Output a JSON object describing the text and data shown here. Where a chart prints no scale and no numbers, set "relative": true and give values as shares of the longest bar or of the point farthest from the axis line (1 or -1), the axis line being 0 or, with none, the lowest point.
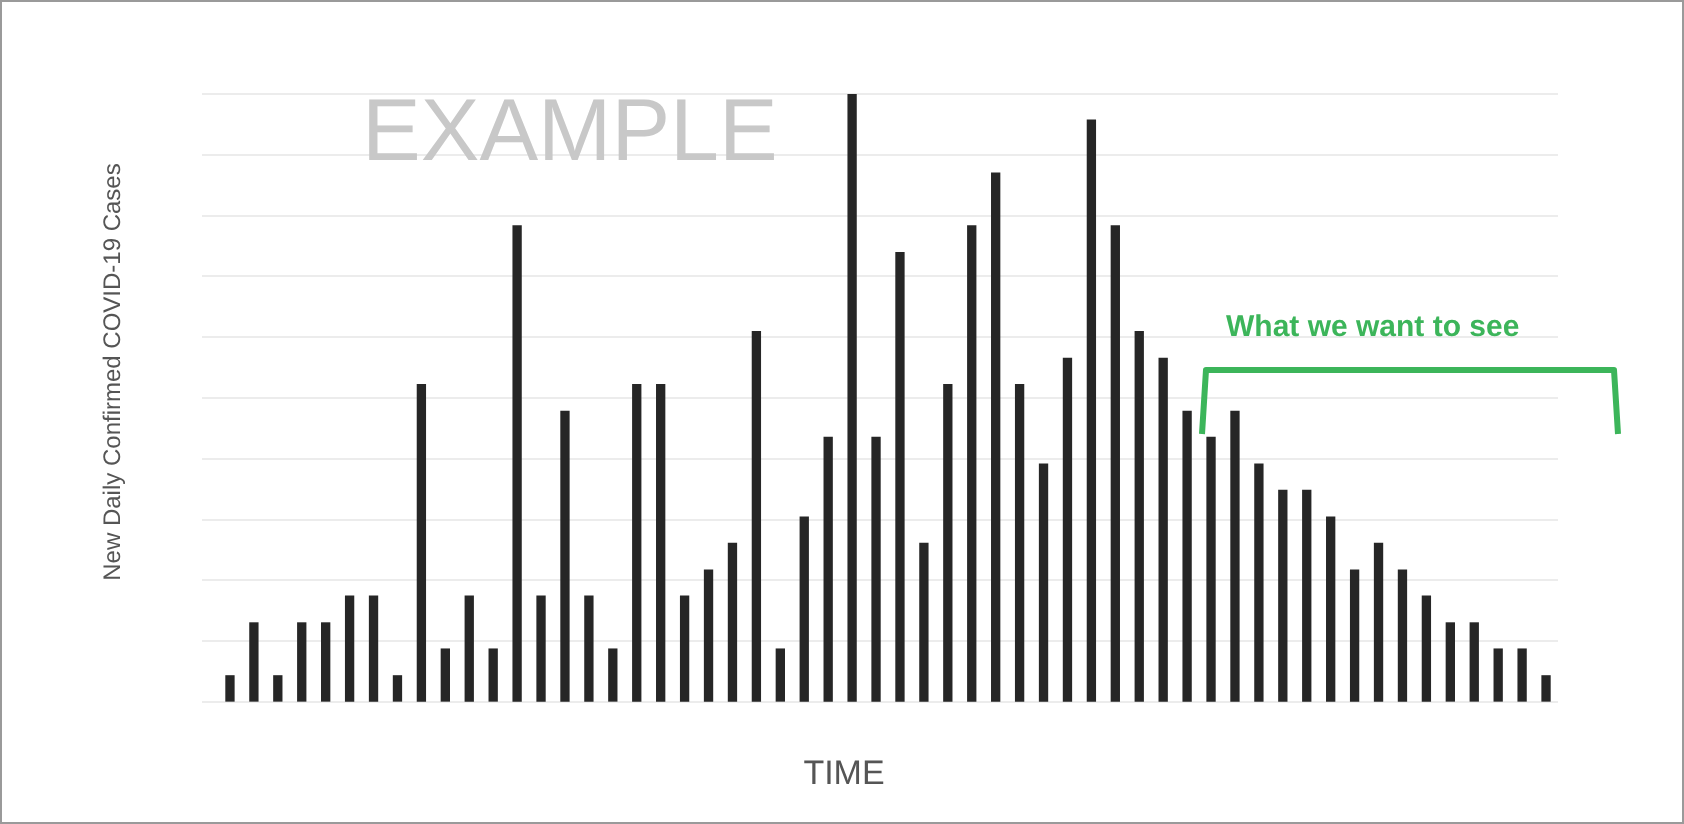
{
  "chart_data": {
    "type": "bar",
    "title": "EXAMPLE",
    "xlabel": "TIME",
    "ylabel": "New Daily Confirmed COVID-19 Cases",
    "relative": true,
    "grid": "y",
    "color": "#262626",
    "categories": [
      null,
      null,
      null,
      null,
      null,
      null,
      null,
      null,
      null,
      null,
      null,
      null,
      null,
      null,
      null,
      null,
      null,
      null,
      null,
      null,
      null,
      null,
      null,
      null,
      null,
      null,
      null,
      null,
      null,
      null,
      null,
      null,
      null,
      null,
      null,
      null,
      null,
      null,
      null,
      null,
      null,
      null,
      null,
      null,
      null,
      null,
      null,
      null,
      null,
      null,
      null,
      null,
      null,
      null,
      null,
      null
    ],
    "values": [
      0.043,
      0.13,
      0.043,
      0.13,
      0.13,
      0.174,
      0.174,
      0.043,
      0.522,
      0.087,
      0.174,
      0.087,
      0.783,
      0.174,
      0.478,
      0.174,
      0.087,
      0.522,
      0.522,
      0.174,
      0.217,
      0.261,
      0.609,
      0.087,
      0.304,
      0.435,
      1,
      0.435,
      0.739,
      0.261,
      0.522,
      0.783,
      0.87,
      0.522,
      0.391,
      0.565,
      0.957,
      0.783,
      0.609,
      0.565,
      0.478,
      0.435,
      0.478,
      0.391,
      0.348,
      0.348,
      0.304,
      0.217,
      0.261,
      0.217,
      0.174,
      0.13,
      0.13,
      0.087,
      0.087,
      0.043
    ],
    "annotations": [
      "What we want to see"
    ]
  }
}
